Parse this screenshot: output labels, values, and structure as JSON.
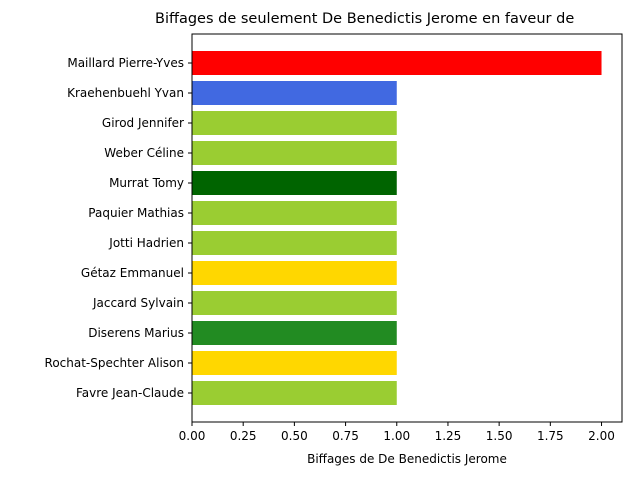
{
  "chart_data": {
    "type": "bar",
    "orientation": "horizontal",
    "title": "Biffages de seulement De Benedictis Jerome en faveur de",
    "xlabel": "Biffages de De Benedictis Jerome",
    "ylabel": "",
    "xlim": [
      0,
      2.1
    ],
    "x_ticks": [
      "0.00",
      "0.25",
      "0.50",
      "0.75",
      "1.00",
      "1.25",
      "1.50",
      "1.75",
      "2.00"
    ],
    "grid": false,
    "categories": [
      "Maillard Pierre-Yves",
      "Kraehenbuehl Yvan",
      "Girod Jennifer",
      "Weber Céline",
      "Murrat Tomy",
      "Paquier Mathias",
      "Jotti Hadrien",
      "Gétaz Emmanuel",
      "Jaccard Sylvain",
      "Diserens Marius",
      "Rochat-Spechter Alison",
      "Favre Jean-Claude"
    ],
    "values": [
      2,
      1,
      1,
      1,
      1,
      1,
      1,
      1,
      1,
      1,
      1,
      1
    ],
    "colors": [
      "#ff0000",
      "#4169e1",
      "#9acd32",
      "#9acd32",
      "#006400",
      "#9acd32",
      "#9acd32",
      "#ffd700",
      "#9acd32",
      "#228b22",
      "#ffd700",
      "#9acd32"
    ]
  }
}
